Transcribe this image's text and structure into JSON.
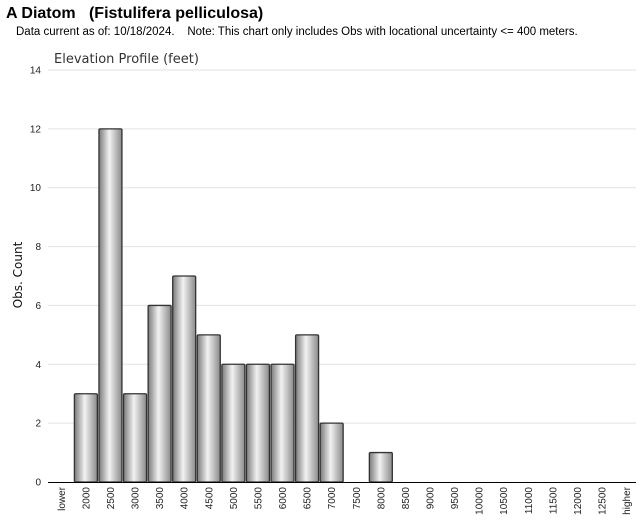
{
  "header": {
    "title": "A Diatom   (Fistulifera pelliculosa)",
    "subtitle": "Data current as of: 10/18/2024.    Note: This chart only includes Obs with locational uncertainty <= 400 meters."
  },
  "chart_data": {
    "type": "bar",
    "title": "Elevation Profile (feet)",
    "xlabel": "",
    "ylabel": "Obs. Count",
    "ylim": [
      0,
      14
    ],
    "yticks": [
      0,
      2,
      4,
      6,
      8,
      10,
      12,
      14
    ],
    "grid": true,
    "categories": [
      "lower",
      "2000",
      "2500",
      "3000",
      "3500",
      "4000",
      "4500",
      "5000",
      "5500",
      "6000",
      "6500",
      "7000",
      "7500",
      "8000",
      "8500",
      "9000",
      "9500",
      "10000",
      "10500",
      "11000",
      "11500",
      "12000",
      "12500",
      "higher"
    ],
    "values": [
      0,
      3,
      12,
      3,
      6,
      7,
      5,
      4,
      4,
      4,
      5,
      2,
      0,
      1,
      0,
      0,
      0,
      0,
      0,
      0,
      0,
      0,
      0,
      0
    ]
  }
}
